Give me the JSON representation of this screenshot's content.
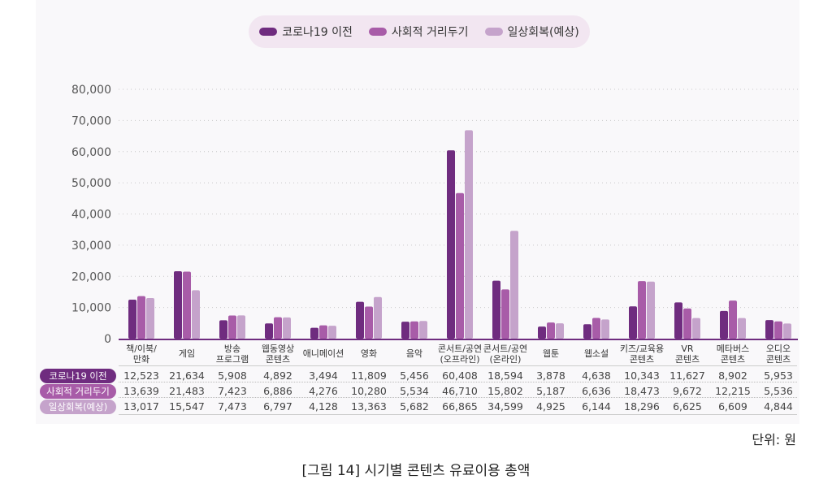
{
  "chart_data": {
    "type": "bar",
    "title": "[그림 14] 시기별 콘텐츠 유료이용 총액",
    "unit": "단위:  원",
    "categories": [
      [
        "책/이북/",
        "만화"
      ],
      [
        "게임"
      ],
      [
        "방송",
        "프로그램"
      ],
      [
        "웹동영상",
        "콘텐츠"
      ],
      [
        "애니메이션"
      ],
      [
        "영화"
      ],
      [
        "음악"
      ],
      [
        "콘서트/공연",
        "(오프라인)"
      ],
      [
        "콘서트/공연",
        "(온라인)"
      ],
      [
        "웹툰"
      ],
      [
        "웹소설"
      ],
      [
        "키즈/교육용",
        "콘텐츠"
      ],
      [
        "VR",
        "콘텐츠"
      ],
      [
        "메타버스",
        "콘텐츠"
      ],
      [
        "오디오",
        "콘텐츠"
      ]
    ],
    "series": [
      {
        "name": "코로나19 이전",
        "color": "#6f2c7f",
        "values": [
          12523,
          21634,
          5908,
          4892,
          3494,
          11809,
          5456,
          60408,
          18594,
          3878,
          4638,
          10343,
          11627,
          8902,
          5953
        ],
        "labels": [
          "12,523",
          "21,634",
          "5,908",
          "4,892",
          "3,494",
          "11,809",
          "5,456",
          "60,408",
          "18,594",
          "3,878",
          "4,638",
          "10,343",
          "11,627",
          "8,902",
          "5,953"
        ]
      },
      {
        "name": "사회적 거리두기",
        "color": "#a85ca8",
        "values": [
          13639,
          21483,
          7423,
          6886,
          4276,
          10280,
          5534,
          46710,
          15802,
          5187,
          6636,
          18473,
          9672,
          12215,
          5536
        ],
        "labels": [
          "13,639",
          "21,483",
          "7,423",
          "6,886",
          "4,276",
          "10,280",
          "5,534",
          "46,710",
          "15,802",
          "5,187",
          "6,636",
          "18,473",
          "9,672",
          "12,215",
          "5,536"
        ]
      },
      {
        "name": "일상회복(예상)",
        "color": "#c5a3cb",
        "values": [
          13017,
          15547,
          7473,
          6797,
          4128,
          13363,
          5682,
          66865,
          34599,
          4925,
          6144,
          18296,
          6625,
          6609,
          4844
        ],
        "labels": [
          "13,017",
          "15,547",
          "7,473",
          "6,797",
          "4,128",
          "13,363",
          "5,682",
          "66,865",
          "34,599",
          "4,925",
          "6,144",
          "18,296",
          "6,625",
          "6,609",
          "4,844"
        ]
      }
    ],
    "ylim": [
      0,
      80000
    ],
    "yticks": [
      0,
      10000,
      20000,
      30000,
      40000,
      50000,
      60000,
      70000,
      80000
    ],
    "ytick_labels": [
      "0",
      "10,000",
      "20,000",
      "30,000",
      "40,000",
      "50,000",
      "60,000",
      "70,000",
      "80,000"
    ],
    "grid": true,
    "legend_position": "top-center"
  }
}
